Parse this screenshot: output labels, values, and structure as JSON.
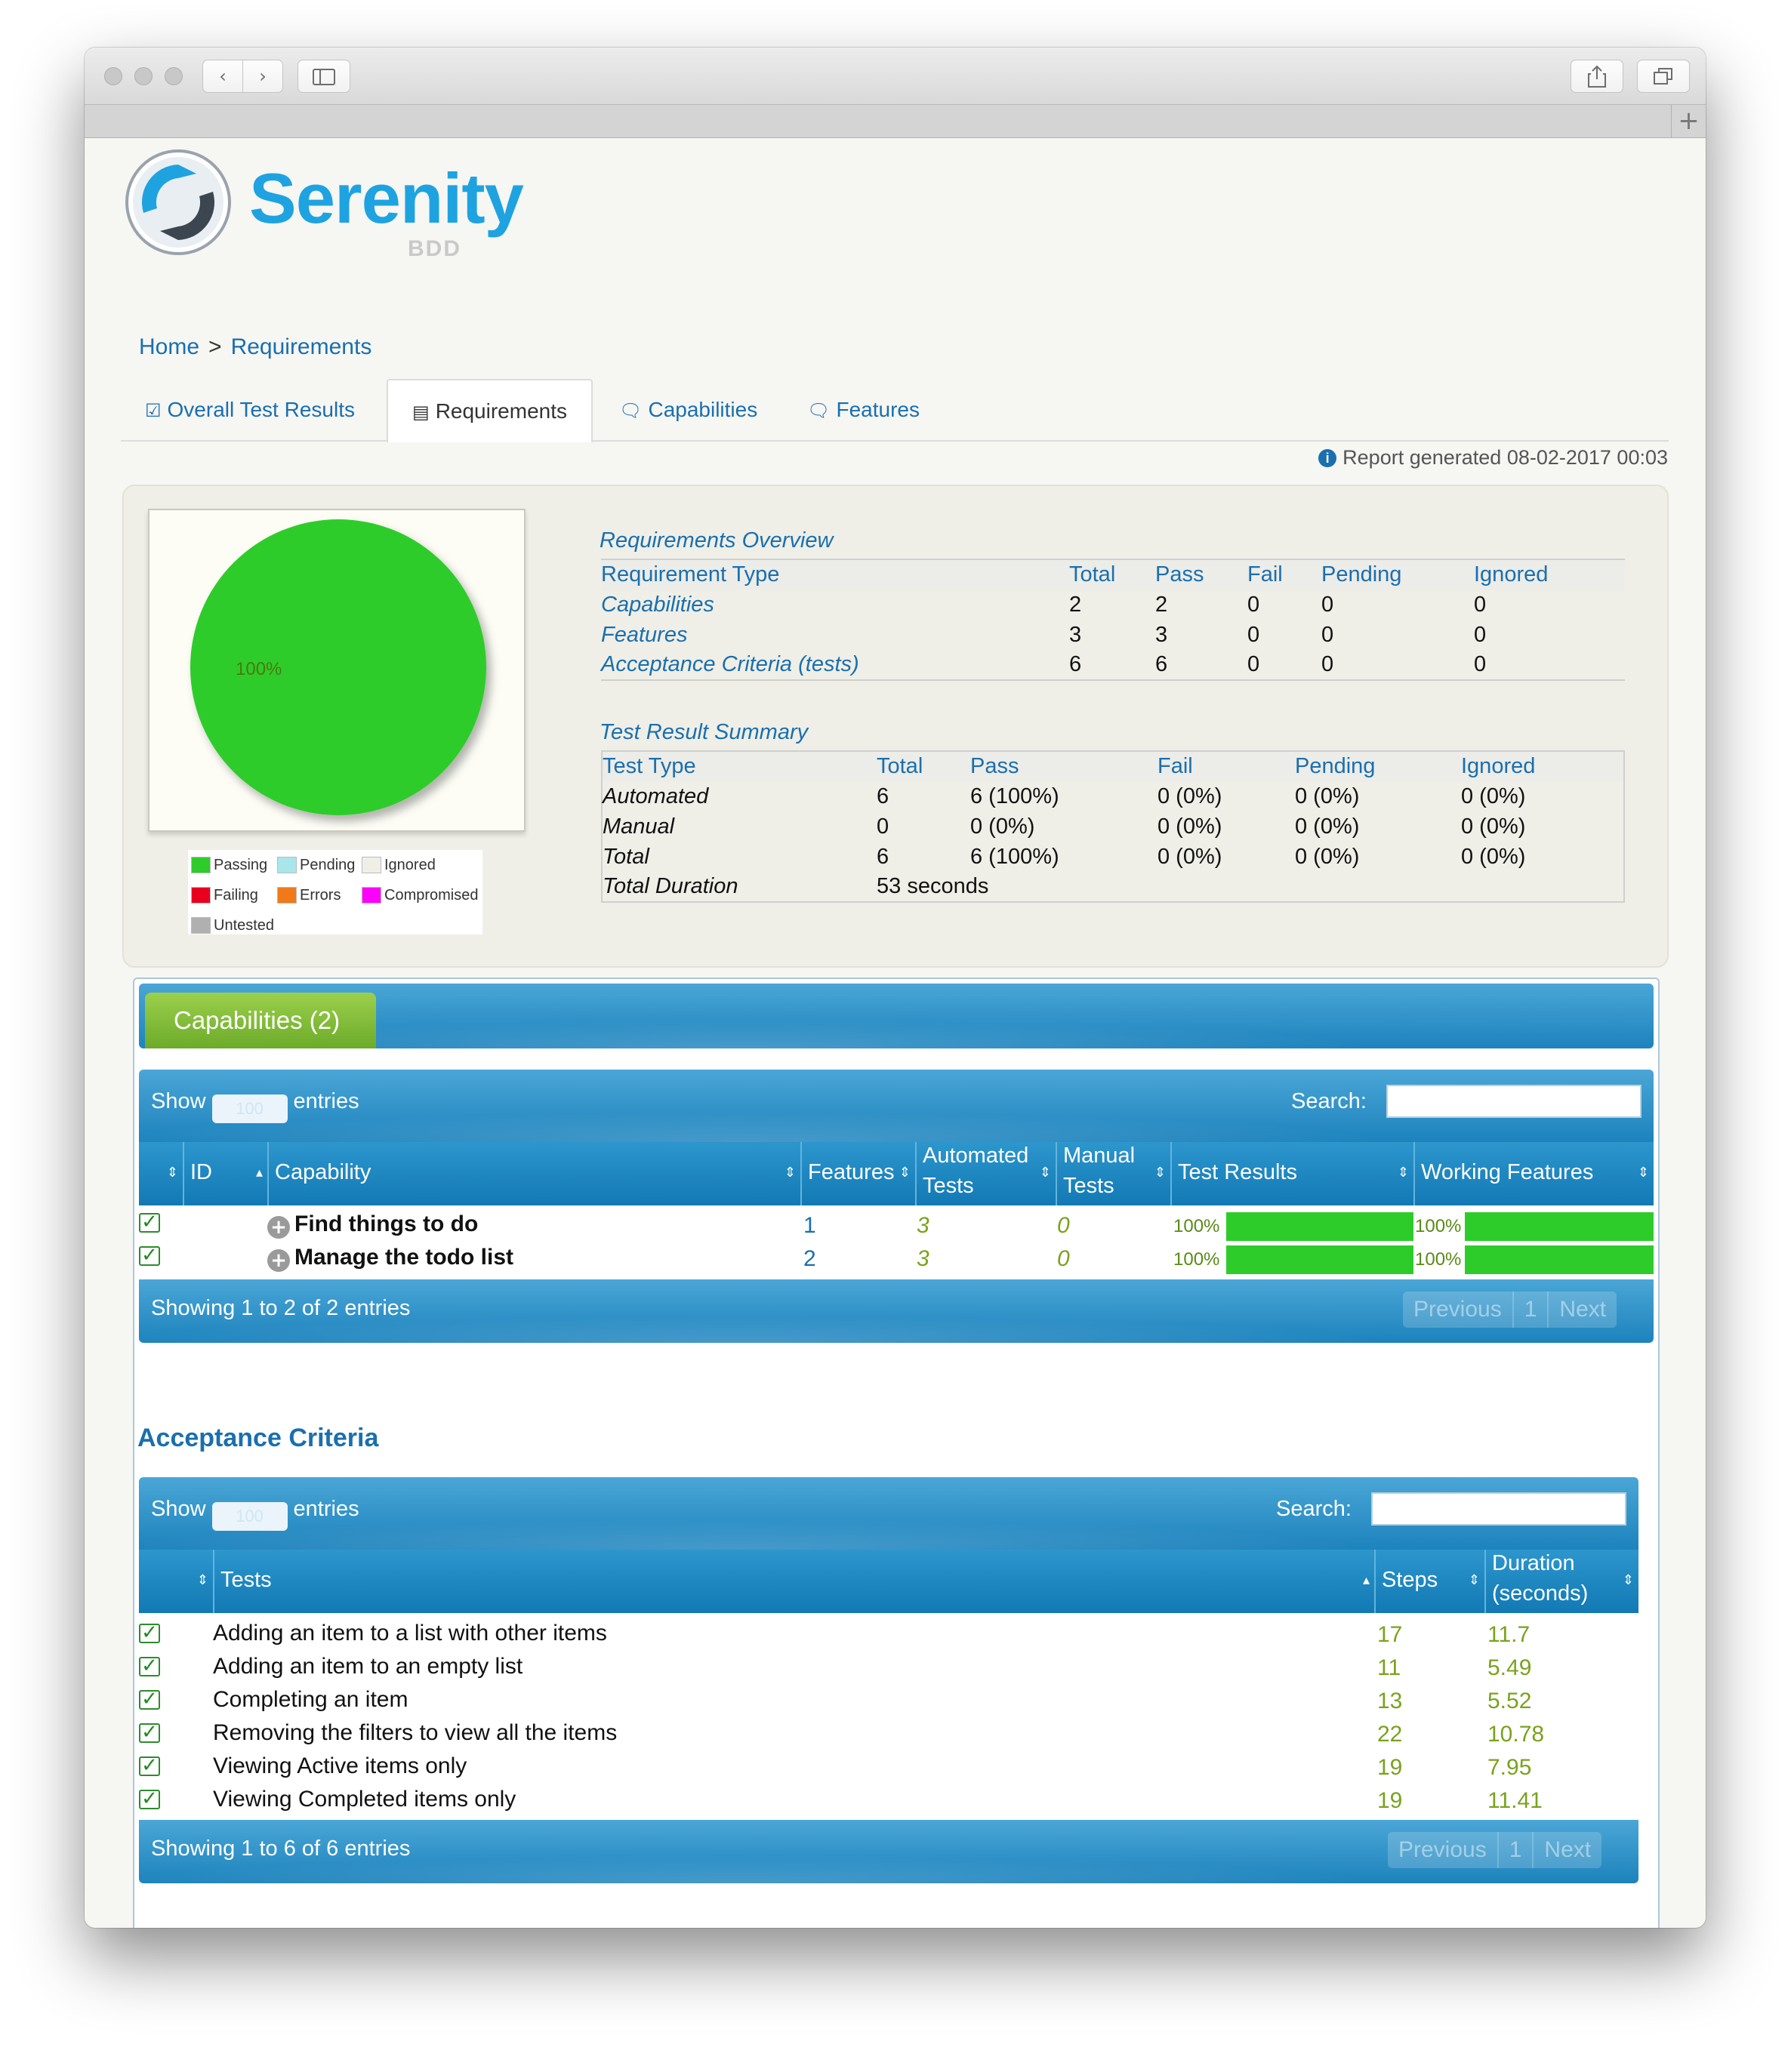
{
  "colors": {
    "accent": "#1a6fae",
    "passing": "#2ecc2a",
    "pending": "#a8e6ec",
    "ignored": "#efefe7",
    "failing": "#e8001e",
    "errors": "#f07a1a",
    "compromised": "#ff00ff",
    "untested": "#b0b0b0"
  },
  "browser": {
    "back_icon": "chevron-left-icon",
    "forward_icon": "chevron-right-icon",
    "sidebar_icon": "sidebar-icon",
    "share_icon": "share-icon",
    "tabs_icon": "tabs-icon",
    "new_tab_icon": "plus-icon"
  },
  "logo": {
    "word_a": "Ser",
    "word_b": "enity",
    "sub": "BDD"
  },
  "breadcrumb": {
    "home": "Home",
    "sep": ">",
    "current": "Requirements"
  },
  "tabs": {
    "overall": "Overall Test Results",
    "requirements": "Requirements",
    "capabilities": "Capabilities",
    "features": "Features"
  },
  "report_generated": "Report generated 08-02-2017 00:03",
  "pie": {
    "label": "100%",
    "passing_fraction": 1.0
  },
  "legend": {
    "passing": "Passing",
    "pending": "Pending",
    "ignored": "Ignored",
    "failing": "Failing",
    "errors": "Errors",
    "compromised": "Compromised",
    "untested": "Untested"
  },
  "requirements_overview": {
    "title": "Requirements Overview",
    "headers": [
      "Requirement Type",
      "Total",
      "Pass",
      "Fail",
      "Pending",
      "Ignored"
    ],
    "rows": [
      [
        "Capabilities",
        "2",
        "2",
        "0",
        "0",
        "0"
      ],
      [
        "Features",
        "3",
        "3",
        "0",
        "0",
        "0"
      ],
      [
        "Acceptance Criteria (tests)",
        "6",
        "6",
        "0",
        "0",
        "0"
      ]
    ]
  },
  "test_result_summary": {
    "title": "Test Result Summary",
    "headers": [
      "Test Type",
      "Total",
      "Pass",
      "Fail",
      "Pending",
      "Ignored"
    ],
    "rows": [
      [
        "Automated",
        "6",
        "6 (100%)",
        "0 (0%)",
        "0 (0%)",
        "0 (0%)"
      ],
      [
        "Manual",
        "0",
        "0 (0%)",
        "0 (0%)",
        "0 (0%)",
        "0 (0%)"
      ],
      [
        "Total",
        "6",
        "6 (100%)",
        "0 (0%)",
        "0 (0%)",
        "0 (0%)"
      ]
    ],
    "duration_label": "Total Duration",
    "duration_value": "53 seconds"
  },
  "capabilities": {
    "tab_label": "Capabilities (2)",
    "show": "Show",
    "page_length": "100",
    "entries": "entries",
    "search_label": "Search:",
    "headers": {
      "id": "ID",
      "capability": "Capability",
      "features": "Features",
      "automated_1": "Automated",
      "automated_2": "Tests",
      "manual_1": "Manual",
      "manual_2": "Tests",
      "test_results": "Test Results",
      "working_features": "Working Features"
    },
    "rows": [
      {
        "name": "Find things to do",
        "features": "1",
        "automated": "3",
        "manual": "0",
        "test_results": "100%",
        "test_results_fraction": 1.0,
        "working": "100%",
        "working_fraction": 1.0
      },
      {
        "name": "Manage the todo list",
        "features": "2",
        "automated": "3",
        "manual": "0",
        "test_results": "100%",
        "test_results_fraction": 1.0,
        "working": "100%",
        "working_fraction": 1.0
      }
    ],
    "info": "Showing 1 to 2 of 2 entries",
    "pager": {
      "previous": "Previous",
      "page": "1",
      "next": "Next"
    }
  },
  "acceptance": {
    "title": "Acceptance Criteria",
    "show": "Show",
    "page_length": "100",
    "entries": "entries",
    "search_label": "Search:",
    "headers": {
      "tests": "Tests",
      "steps": "Steps",
      "duration_1": "Duration",
      "duration_2": "(seconds)"
    },
    "rows": [
      {
        "name": "Adding an item to a list with other items",
        "steps": "17",
        "duration": "11.7"
      },
      {
        "name": "Adding an item to an empty list",
        "steps": "11",
        "duration": "5.49"
      },
      {
        "name": "Completing an item",
        "steps": "13",
        "duration": "5.52"
      },
      {
        "name": "Removing the filters to view all the items",
        "steps": "22",
        "duration": "10.78"
      },
      {
        "name": "Viewing Active items only",
        "steps": "19",
        "duration": "7.95"
      },
      {
        "name": "Viewing Completed items only",
        "steps": "19",
        "duration": "11.41"
      }
    ],
    "info": "Showing 1 to 6 of 6 entries",
    "pager": {
      "previous": "Previous",
      "page": "1",
      "next": "Next"
    }
  }
}
